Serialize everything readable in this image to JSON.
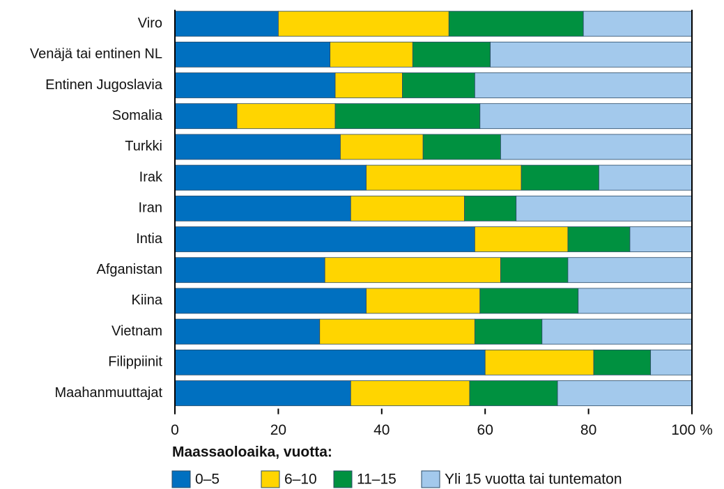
{
  "chart_data": {
    "type": "stacked-barh",
    "categories": [
      "Viro",
      "Venäjä tai entinen NL",
      "Entinen Jugoslavia",
      "Somalia",
      "Turkki",
      "Irak",
      "Iran",
      "Intia",
      "Afganistan",
      "Kiina",
      "Vietnam",
      "Filippiinit",
      "Maahanmuuttajat"
    ],
    "series": [
      {
        "name": "0–5",
        "color": "#0070c0",
        "values": [
          20,
          30,
          31,
          12,
          32,
          37,
          34,
          58,
          29,
          37,
          28,
          60,
          34
        ]
      },
      {
        "name": "6–10",
        "color": "#ffd500",
        "values": [
          33,
          16,
          13,
          19,
          16,
          30,
          22,
          18,
          34,
          22,
          30,
          21,
          23
        ]
      },
      {
        "name": "11–15",
        "color": "#009140",
        "values": [
          26,
          15,
          14,
          28,
          15,
          15,
          10,
          12,
          13,
          19,
          13,
          11,
          17
        ]
      },
      {
        "name": "Yli 15 vuotta tai tuntematon",
        "color": "#a3c9ec",
        "values": [
          21,
          39,
          42,
          41,
          37,
          18,
          34,
          12,
          24,
          22,
          29,
          8,
          26
        ]
      }
    ],
    "xlim": [
      0,
      100
    ],
    "xticks": [
      0,
      20,
      40,
      60,
      80,
      {
        "value": 100,
        "label": "100 %"
      }
    ],
    "legend_title": "Maassaoloaika, vuotta:"
  }
}
